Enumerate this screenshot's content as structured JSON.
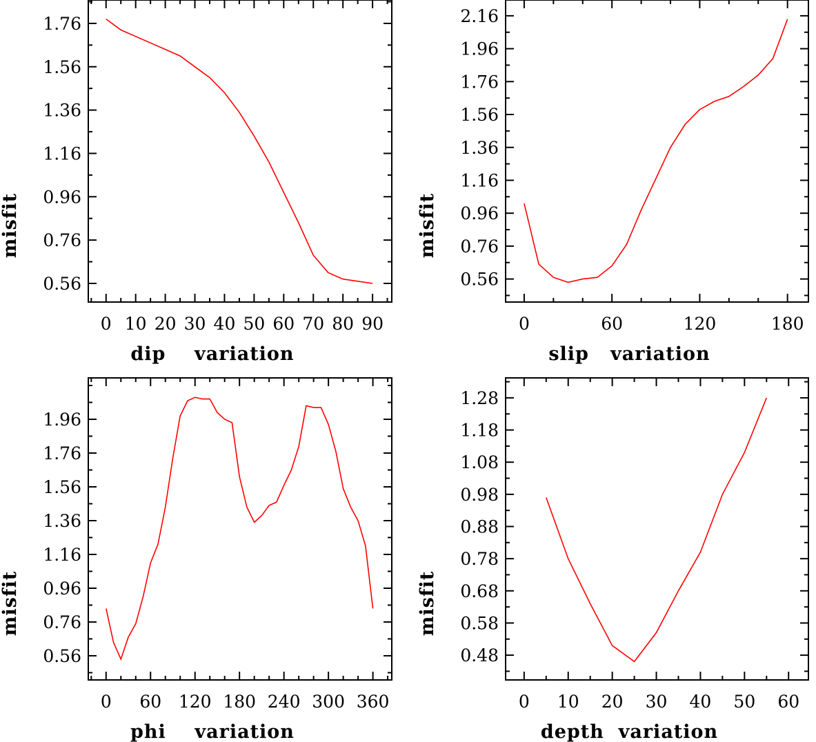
{
  "chart_data": [
    {
      "type": "line",
      "xlabel": "dip    variation",
      "ylabel": "misfit",
      "xlim": [
        -6,
        96.5
      ],
      "ylim": [
        0.474,
        1.868
      ],
      "xticks": [
        0,
        10,
        20,
        30,
        40,
        50,
        60,
        70,
        80,
        90
      ],
      "xminor": 5,
      "yticks": [
        0.56,
        0.76,
        0.96,
        1.16,
        1.36,
        1.56,
        1.76
      ],
      "yminor": 0.1,
      "color": "#ff0000",
      "x": [
        0,
        5,
        10,
        15,
        20,
        25,
        30,
        35,
        40,
        45,
        50,
        55,
        60,
        65,
        70,
        75,
        80,
        85,
        90
      ],
      "y": [
        1.78,
        1.73,
        1.7,
        1.67,
        1.64,
        1.61,
        1.56,
        1.51,
        1.44,
        1.35,
        1.24,
        1.12,
        0.98,
        0.84,
        0.69,
        0.61,
        0.58,
        0.57,
        0.56
      ]
    },
    {
      "type": "line",
      "xlabel": "slip   variation",
      "ylabel": "misfit",
      "xlim": [
        -12.7,
        194.3
      ],
      "ylim": [
        0.42,
        2.256
      ],
      "xticks": [
        0,
        60,
        120,
        180
      ],
      "xminor": 20,
      "yticks": [
        0.56,
        0.76,
        0.96,
        1.16,
        1.36,
        1.56,
        1.76,
        1.96,
        2.16
      ],
      "yminor": 0.1,
      "color": "#ff0000",
      "x": [
        0,
        10,
        20,
        30,
        40,
        50,
        60,
        70,
        80,
        90,
        100,
        110,
        120,
        130,
        140,
        150,
        160,
        170,
        180
      ],
      "y": [
        1.02,
        0.65,
        0.57,
        0.54,
        0.56,
        0.57,
        0.64,
        0.77,
        0.98,
        1.17,
        1.36,
        1.5,
        1.59,
        1.64,
        1.67,
        1.73,
        1.8,
        1.9,
        2.14
      ]
    },
    {
      "type": "line",
      "xlabel": "phi    variation",
      "ylabel": "misfit",
      "xlim": [
        -24,
        385.5
      ],
      "ylim": [
        0.417,
        2.205
      ],
      "xticks": [
        0,
        60,
        120,
        180,
        240,
        300,
        360
      ],
      "xminor": 20,
      "yticks": [
        0.56,
        0.76,
        0.96,
        1.16,
        1.36,
        1.56,
        1.76,
        1.96
      ],
      "yminor": 0.1,
      "color": "#ff0000",
      "x": [
        0,
        10,
        20,
        30,
        40,
        50,
        60,
        70,
        80,
        90,
        100,
        110,
        120,
        130,
        140,
        150,
        160,
        170,
        180,
        190,
        200,
        210,
        220,
        230,
        240,
        250,
        260,
        270,
        280,
        290,
        300,
        310,
        320,
        330,
        340,
        350,
        360
      ],
      "y": [
        0.84,
        0.64,
        0.54,
        0.67,
        0.75,
        0.91,
        1.11,
        1.22,
        1.44,
        1.73,
        1.98,
        2.07,
        2.09,
        2.08,
        2.08,
        2.0,
        1.96,
        1.94,
        1.62,
        1.44,
        1.35,
        1.39,
        1.45,
        1.47,
        1.57,
        1.66,
        1.8,
        2.04,
        2.03,
        2.03,
        1.93,
        1.77,
        1.55,
        1.44,
        1.36,
        1.21,
        0.84
      ]
    },
    {
      "type": "line",
      "xlabel": "depth  variation",
      "ylabel": "misfit",
      "xlim": [
        -4.2,
        64.5
      ],
      "ylim": [
        0.403,
        1.342
      ],
      "xticks": [
        0,
        10,
        20,
        30,
        40,
        50,
        60
      ],
      "xminor": 5,
      "yticks": [
        0.48,
        0.58,
        0.68,
        0.78,
        0.88,
        0.98,
        1.08,
        1.18,
        1.28
      ],
      "yminor": 0.05,
      "color": "#ff0000",
      "x": [
        5,
        10,
        15,
        20,
        25,
        30,
        35,
        40,
        45,
        50,
        55
      ],
      "y": [
        0.97,
        0.78,
        0.64,
        0.51,
        0.46,
        0.55,
        0.68,
        0.8,
        0.98,
        1.11,
        1.28
      ]
    }
  ]
}
